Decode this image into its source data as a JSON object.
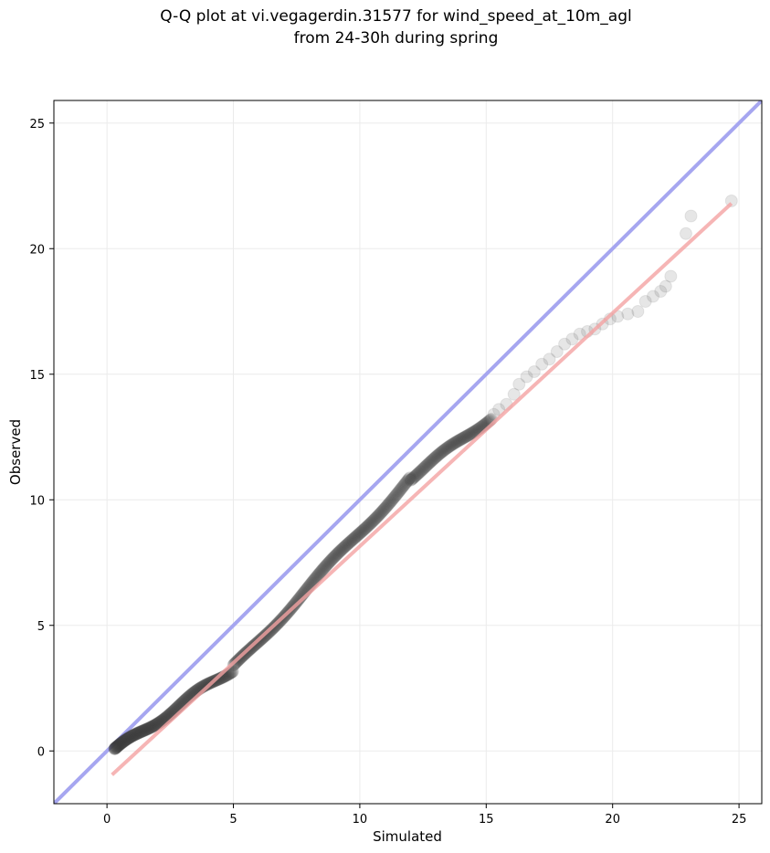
{
  "chart_data": {
    "type": "scatter",
    "title_line1": "Q-Q plot at vi.vegagerdin.31577 for wind_speed_at_10m_agl",
    "title_line2": "from 24-30h during spring",
    "xlabel": "Simulated",
    "ylabel": "Observed",
    "xlim": [
      -2.1,
      25.9
    ],
    "ylim": [
      -2.1,
      25.9
    ],
    "x_ticks": [
      0,
      5,
      10,
      15,
      20,
      25
    ],
    "y_ticks": [
      0,
      5,
      10,
      15,
      20,
      25
    ],
    "grid": true,
    "reference_line": {
      "kind": "identity",
      "color": "#a6a6f0"
    },
    "fit_line": {
      "x": [
        0.2,
        24.7
      ],
      "y": [
        -0.95,
        21.8
      ],
      "color": "#f4a3a3"
    },
    "point_color": "#404040",
    "tail_points": {
      "x": [
        15.3,
        15.5,
        15.8,
        16.1,
        16.3,
        16.6,
        16.9,
        17.2,
        17.5,
        17.8,
        18.1,
        18.4,
        18.7,
        19.0,
        19.3,
        19.6,
        19.9,
        20.2,
        20.6,
        21.0,
        21.3,
        21.6,
        21.9,
        22.1,
        22.3,
        22.9,
        23.1,
        24.7
      ],
      "y": [
        13.4,
        13.6,
        13.8,
        14.2,
        14.6,
        14.9,
        15.1,
        15.4,
        15.6,
        15.9,
        16.2,
        16.4,
        16.6,
        16.7,
        16.8,
        17.0,
        17.2,
        17.3,
        17.4,
        17.5,
        17.9,
        18.1,
        18.3,
        18.5,
        18.9,
        20.6,
        21.3,
        21.9
      ]
    },
    "dense_points_range": {
      "x_start": 0.3,
      "x_end": 15.2,
      "count": 600
    }
  }
}
